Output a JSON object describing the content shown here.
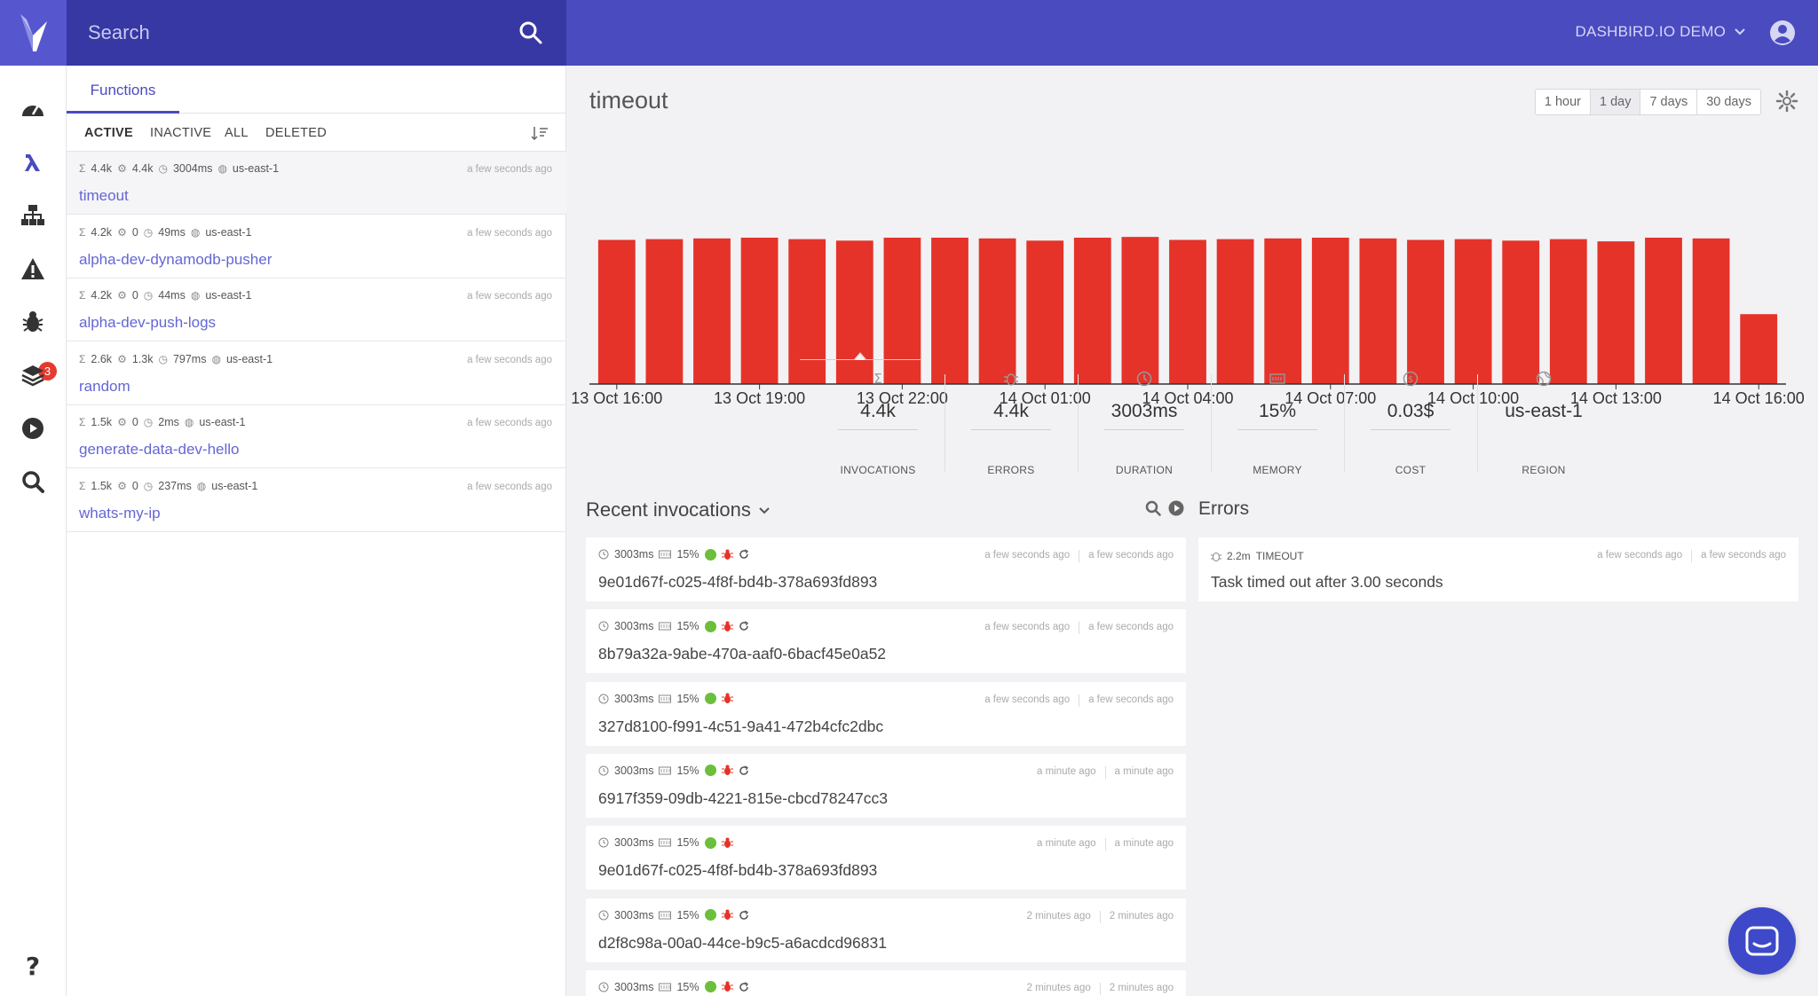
{
  "search": {
    "placeholder": "Search"
  },
  "account": {
    "label": "DASHBIRD.IO DEMO"
  },
  "nav": {
    "bug_badge": "3"
  },
  "functions_panel": {
    "tab_label": "Functions",
    "filters": [
      "ACTIVE",
      "INACTIVE",
      "ALL",
      "DELETED"
    ],
    "items": [
      {
        "invocations": "4.4k",
        "errors": "4.4k",
        "duration": "3004ms",
        "region": "us-east-1",
        "time": "a few seconds ago",
        "name": "timeout"
      },
      {
        "invocations": "4.2k",
        "errors": "0",
        "duration": "49ms",
        "region": "us-east-1",
        "time": "a few seconds ago",
        "name": "alpha-dev-dynamodb-pusher"
      },
      {
        "invocations": "4.2k",
        "errors": "0",
        "duration": "44ms",
        "region": "us-east-1",
        "time": "a few seconds ago",
        "name": "alpha-dev-push-logs"
      },
      {
        "invocations": "2.6k",
        "errors": "1.3k",
        "duration": "797ms",
        "region": "us-east-1",
        "time": "a few seconds ago",
        "name": "random"
      },
      {
        "invocations": "1.5k",
        "errors": "0",
        "duration": "2ms",
        "region": "us-east-1",
        "time": "a few seconds ago",
        "name": "generate-data-dev-hello"
      },
      {
        "invocations": "1.5k",
        "errors": "0",
        "duration": "237ms",
        "region": "us-east-1",
        "time": "a few seconds ago",
        "name": "whats-my-ip"
      }
    ]
  },
  "main": {
    "title": "timeout",
    "ranges": [
      "1 hour",
      "1 day",
      "7 days",
      "30 days"
    ],
    "active_range": "1 day"
  },
  "chart_data": {
    "type": "bar",
    "color": "#e5332a",
    "title": "",
    "x_tick_labels": [
      "13 Oct 16:00",
      "13 Oct 19:00",
      "13 Oct 22:00",
      "14 Oct 01:00",
      "14 Oct 04:00",
      "14 Oct 07:00",
      "14 Oct 10:00",
      "14 Oct 13:00",
      "14 Oct 16:00"
    ],
    "values": [
      196,
      197,
      198,
      199,
      197,
      195,
      199,
      199,
      198,
      195,
      199,
      200,
      196,
      197,
      198,
      199,
      198,
      196,
      197,
      195,
      197,
      194,
      199,
      198,
      95
    ],
    "ylim": [
      0,
      205
    ],
    "grid": false,
    "legend": "none"
  },
  "metrics": [
    {
      "icon": "sigma-icon",
      "value": "4.4k",
      "label": "INVOCATIONS"
    },
    {
      "icon": "bug-icon",
      "value": "4.4k",
      "label": "ERRORS"
    },
    {
      "icon": "clock-icon",
      "value": "3003ms",
      "label": "DURATION"
    },
    {
      "icon": "memory-icon",
      "value": "15%",
      "label": "MEMORY"
    },
    {
      "icon": "dollar-icon",
      "value": "0.03$",
      "label": "COST"
    },
    {
      "icon": "globe-icon",
      "value": "us-east-1",
      "label": "REGION"
    }
  ],
  "invocations": {
    "title": "Recent invocations",
    "items": [
      {
        "duration": "3003ms",
        "memory": "15%",
        "retry": true,
        "time1": "a few seconds ago",
        "time2": "a few seconds ago",
        "id": "9e01d67f-c025-4f8f-bd4b-378a693fd893"
      },
      {
        "duration": "3003ms",
        "memory": "15%",
        "retry": true,
        "time1": "a few seconds ago",
        "time2": "a few seconds ago",
        "id": "8b79a32a-9abe-470a-aaf0-6bacf45e0a52"
      },
      {
        "duration": "3003ms",
        "memory": "15%",
        "retry": false,
        "time1": "a few seconds ago",
        "time2": "a few seconds ago",
        "id": "327d8100-f991-4c51-9a41-472b4cfc2dbc"
      },
      {
        "duration": "3003ms",
        "memory": "15%",
        "retry": true,
        "time1": "a minute ago",
        "time2": "a minute ago",
        "id": "6917f359-09db-4221-815e-cbcd78247cc3"
      },
      {
        "duration": "3003ms",
        "memory": "15%",
        "retry": false,
        "time1": "a minute ago",
        "time2": "a minute ago",
        "id": "9e01d67f-c025-4f8f-bd4b-378a693fd893"
      },
      {
        "duration": "3003ms",
        "memory": "15%",
        "retry": true,
        "time1": "2 minutes ago",
        "time2": "2 minutes ago",
        "id": "d2f8c98a-00a0-44ce-b9c5-a6acdcd96831"
      },
      {
        "duration": "3003ms",
        "memory": "15%",
        "retry": true,
        "time1": "2 minutes ago",
        "time2": "2 minutes ago",
        "id": ""
      }
    ]
  },
  "errors": {
    "title": "Errors",
    "items": [
      {
        "count": "2.2m",
        "type": "TIMEOUT",
        "time1": "a few seconds ago",
        "time2": "a few seconds ago",
        "message": "Task timed out after 3.00 seconds"
      }
    ]
  }
}
